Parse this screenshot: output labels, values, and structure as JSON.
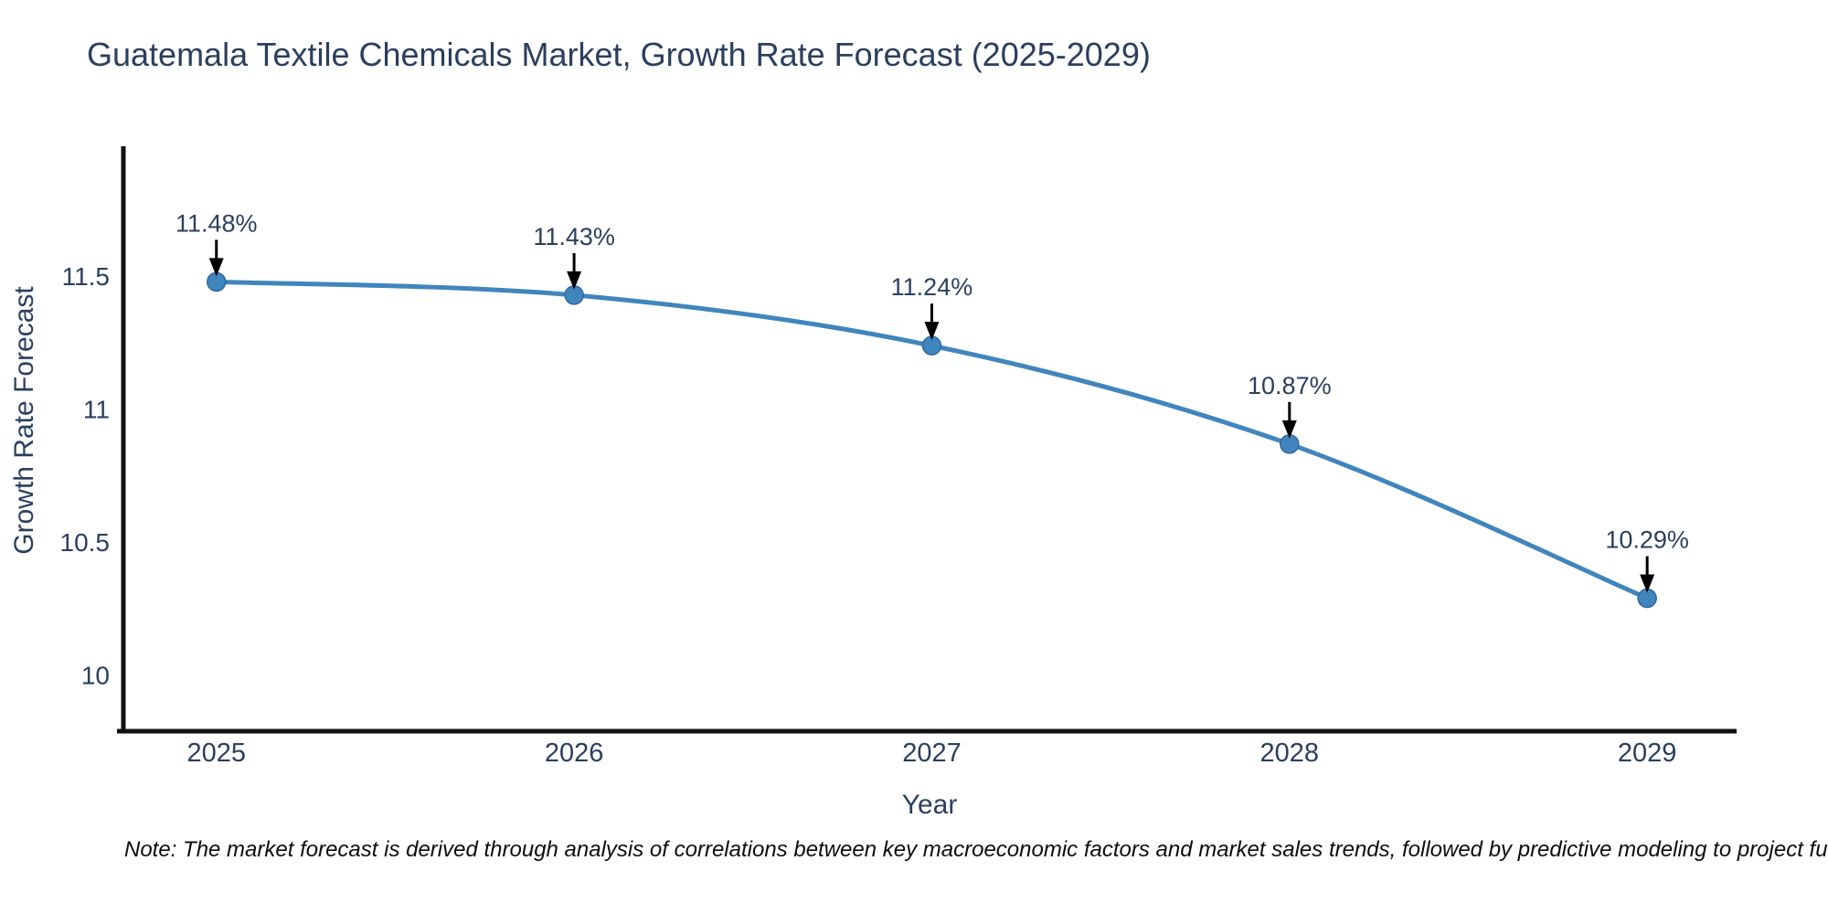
{
  "chart_data": {
    "type": "line",
    "title": "Guatemala Textile Chemicals Market, Growth Rate Forecast (2025-2029)",
    "xlabel": "Year",
    "ylabel": "Growth Rate Forecast",
    "x": [
      2025,
      2026,
      2027,
      2028,
      2029
    ],
    "series": [
      {
        "name": "Growth Rate Forecast",
        "values": [
          11.48,
          11.43,
          11.24,
          10.87,
          10.29
        ]
      }
    ],
    "point_labels": [
      "11.48%",
      "11.43%",
      "11.24%",
      "10.87%",
      "10.29%"
    ],
    "xticks": [
      "2025",
      "2026",
      "2027",
      "2028",
      "2029"
    ],
    "yticks": [
      {
        "value": 11.5,
        "label": "11.5"
      },
      {
        "value": 11.0,
        "label": "11"
      },
      {
        "value": 10.5,
        "label": "10.5"
      },
      {
        "value": 10.0,
        "label": "10"
      }
    ],
    "xlim": [
      2024.74,
      2029.25
    ],
    "ylim": [
      9.79,
      11.99
    ],
    "grid": false,
    "legend_position": "none",
    "line_shape": "spline",
    "marker_shape": "circle",
    "annotation_arrows": "down"
  },
  "colors": {
    "line": "#4185bd",
    "marker_fill": "#4185bd",
    "marker_edge": "#2f689f",
    "axis_spine": "#111111",
    "heading_text": "#2a3f5f",
    "annotation_arrow": "#000000",
    "note_text": "#0d0d0d",
    "background": "#ffffff"
  },
  "footnote": {
    "text": "Note: The market forecast is derived through analysis of correlations between key macroeconomic factors and market sales trends, followed by predictive modeling to project future sal"
  }
}
